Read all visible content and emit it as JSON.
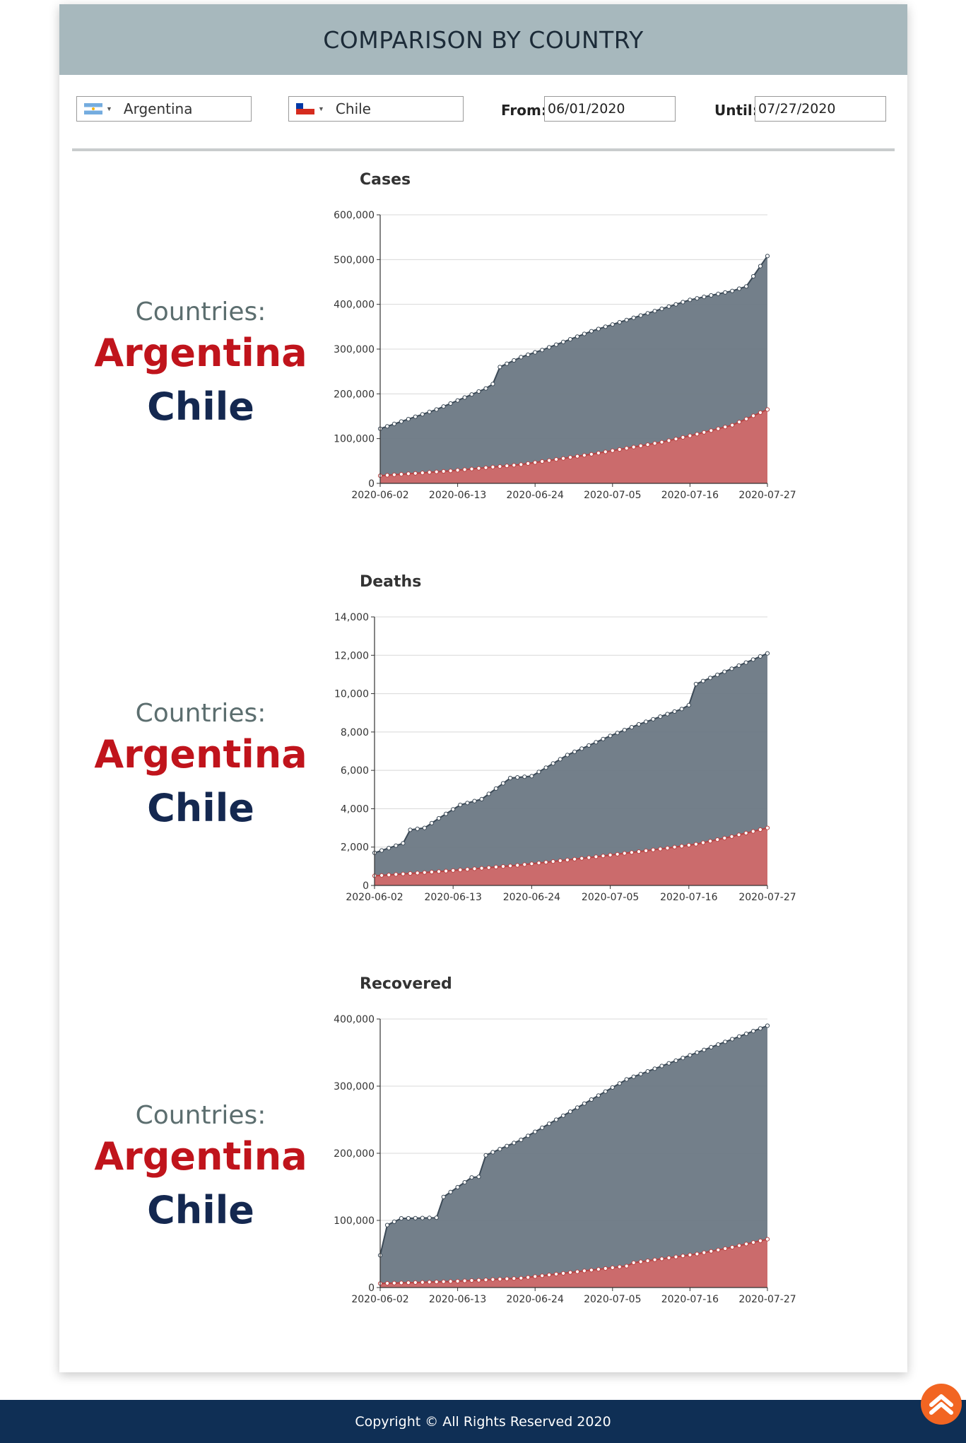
{
  "header": {
    "title": "COMPARISON BY COUNTRY"
  },
  "controls": {
    "country1": {
      "name": "Argentina",
      "flag": "argentina-flag-icon"
    },
    "country2": {
      "name": "Chile",
      "flag": "chile-flag-icon"
    },
    "from_label": "From:",
    "from_value": "06/01/2020",
    "until_label": "Until:",
    "until_value": "07/27/2020"
  },
  "sections": [
    {
      "countries_label": "Countries:",
      "country1": "Argentina",
      "country2": "Chile"
    },
    {
      "countries_label": "Countries:",
      "country1": "Argentina",
      "country2": "Chile"
    },
    {
      "countries_label": "Countries:",
      "country1": "Argentina",
      "country2": "Chile"
    }
  ],
  "colors": {
    "header_bg": "#a7b8bd",
    "country1_text": "#c0141c",
    "country2_text": "#142850",
    "area_chile": "#6b7884",
    "area_argentina": "#d06a6a",
    "footer_bg": "#0f2f55",
    "scroll_button": "#f26522"
  },
  "chart_data": [
    {
      "type": "area",
      "title": "Cases",
      "x_start": "2020-06-02",
      "x_end": "2020-07-27",
      "xticks": [
        "2020-06-02",
        "2020-06-13",
        "2020-06-24",
        "2020-07-05",
        "2020-07-16",
        "2020-07-27"
      ],
      "ylim": [
        0,
        600000
      ],
      "yticks": [
        "0",
        "100,000",
        "200,000",
        "300,000",
        "400,000",
        "500,000",
        "600,000"
      ],
      "grid": true,
      "series": [
        {
          "color": "#6b7884",
          "keypoints": [
            [
              0,
              122000
            ],
            [
              8,
              165000
            ],
            [
              15,
              212000
            ],
            [
              16,
              222000
            ],
            [
              17,
              260000
            ],
            [
              20,
              282000
            ],
            [
              23,
              298000
            ],
            [
              30,
              340000
            ],
            [
              40,
              390000
            ],
            [
              44,
              410000
            ],
            [
              50,
              430000
            ],
            [
              52,
              440000
            ],
            [
              55,
              508000
            ]
          ]
        },
        {
          "color": "#d06a6a",
          "keypoints": [
            [
              0,
              17000
            ],
            [
              10,
              28000
            ],
            [
              20,
              42000
            ],
            [
              30,
              65000
            ],
            [
              40,
              92000
            ],
            [
              45,
              110000
            ],
            [
              50,
              130000
            ],
            [
              55,
              165000
            ]
          ]
        }
      ]
    },
    {
      "type": "area",
      "title": "Deaths",
      "x_start": "2020-06-02",
      "x_end": "2020-07-27",
      "xticks": [
        "2020-06-02",
        "2020-06-13",
        "2020-06-24",
        "2020-07-05",
        "2020-07-16",
        "2020-07-27"
      ],
      "ylim": [
        0,
        14000
      ],
      "yticks": [
        "0",
        "2,000",
        "4,000",
        "6,000",
        "8,000",
        "10,000",
        "12,000",
        "14,000"
      ],
      "grid": true,
      "series": [
        {
          "color": "#6b7884",
          "keypoints": [
            [
              0,
              1700
            ],
            [
              4,
              2200
            ],
            [
              5,
              2900
            ],
            [
              7,
              3000
            ],
            [
              9,
              3500
            ],
            [
              12,
              4200
            ],
            [
              15,
              4500
            ],
            [
              19,
              5600
            ],
            [
              22,
              5700
            ],
            [
              27,
              6800
            ],
            [
              33,
              7800
            ],
            [
              37,
              8400
            ],
            [
              43,
              9200
            ],
            [
              44,
              9400
            ],
            [
              45,
              10500
            ],
            [
              50,
              11300
            ],
            [
              55,
              12100
            ]
          ]
        },
        {
          "color": "#d06a6a",
          "keypoints": [
            [
              0,
              500
            ],
            [
              10,
              750
            ],
            [
              20,
              1050
            ],
            [
              30,
              1450
            ],
            [
              40,
              1900
            ],
            [
              45,
              2150
            ],
            [
              50,
              2550
            ],
            [
              55,
              3000
            ]
          ]
        }
      ]
    },
    {
      "type": "area",
      "title": "Recovered",
      "x_start": "2020-06-02",
      "x_end": "2020-07-27",
      "xticks": [
        "2020-06-02",
        "2020-06-13",
        "2020-06-24",
        "2020-07-05",
        "2020-07-16",
        "2020-07-27"
      ],
      "ylim": [
        0,
        400000
      ],
      "yticks": [
        "0",
        "100,000",
        "200,000",
        "300,000",
        "400,000"
      ],
      "grid": true,
      "series": [
        {
          "color": "#6b7884",
          "keypoints": [
            [
              0,
              48000
            ],
            [
              1,
              93000
            ],
            [
              3,
              103000
            ],
            [
              8,
              104000
            ],
            [
              9,
              135000
            ],
            [
              13,
              164000
            ],
            [
              14,
              165000
            ],
            [
              15,
              197000
            ],
            [
              20,
              220000
            ],
            [
              25,
              250000
            ],
            [
              30,
              280000
            ],
            [
              35,
              310000
            ],
            [
              40,
              330000
            ],
            [
              45,
              350000
            ],
            [
              50,
              370000
            ],
            [
              55,
              390000
            ]
          ]
        },
        {
          "color": "#d06a6a",
          "keypoints": [
            [
              0,
              6000
            ],
            [
              10,
              9000
            ],
            [
              20,
              14000
            ],
            [
              25,
              20000
            ],
            [
              35,
              32000
            ],
            [
              36,
              37000
            ],
            [
              45,
              50000
            ],
            [
              50,
              60000
            ],
            [
              55,
              72000
            ]
          ]
        }
      ]
    }
  ],
  "footer": {
    "copyright": "Copyright © All Rights Reserved 2020"
  }
}
